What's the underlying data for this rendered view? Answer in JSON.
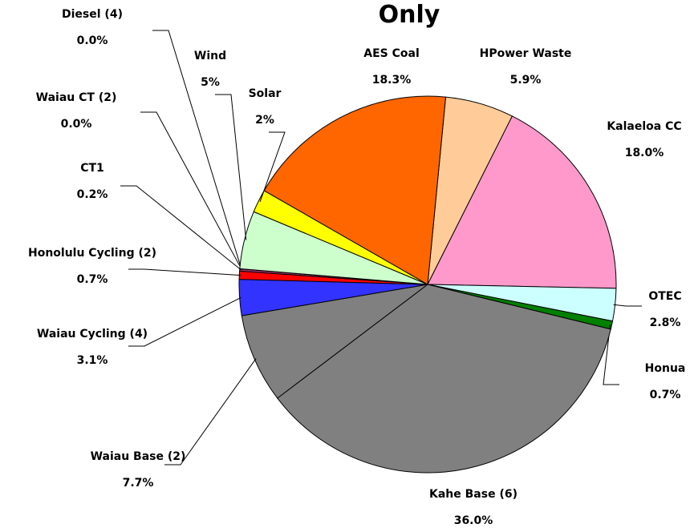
{
  "chart_data": {
    "type": "pie",
    "title": "Only",
    "categories": [
      "HPower Waste",
      "Kalaeloa CC",
      "OTEC",
      "Honua",
      "Kahe Base (6)",
      "Waiau Base (2)",
      "Waiau Cycling (4)",
      "Honolulu Cycling (2)",
      "CT1",
      "Waiau CT (2)",
      "Diesel (4)",
      "Wind",
      "Solar",
      "AES Coal"
    ],
    "values": [
      5.9,
      18.0,
      2.8,
      0.7,
      36.0,
      7.7,
      3.1,
      0.7,
      0.2,
      0,
      0,
      5,
      2,
      18.3
    ],
    "value_labels": [
      "5.9%",
      "18.0%",
      "2.8%",
      "0.7%",
      "36.0%",
      "7.7%",
      "3.1%",
      "0.7%",
      "0.2%",
      "0.0%",
      "0.0%",
      "5%",
      "2%",
      "18.3%"
    ],
    "colors": [
      "#ffcc99",
      "#ff99cc",
      "#ccffff",
      "#008000",
      "#808080",
      "#808080",
      "#3333ff",
      "#ff0000",
      "#993366",
      "#ffcc00",
      "#000080",
      "#ccffcc",
      "#ffff00",
      "#ff6600"
    ]
  }
}
